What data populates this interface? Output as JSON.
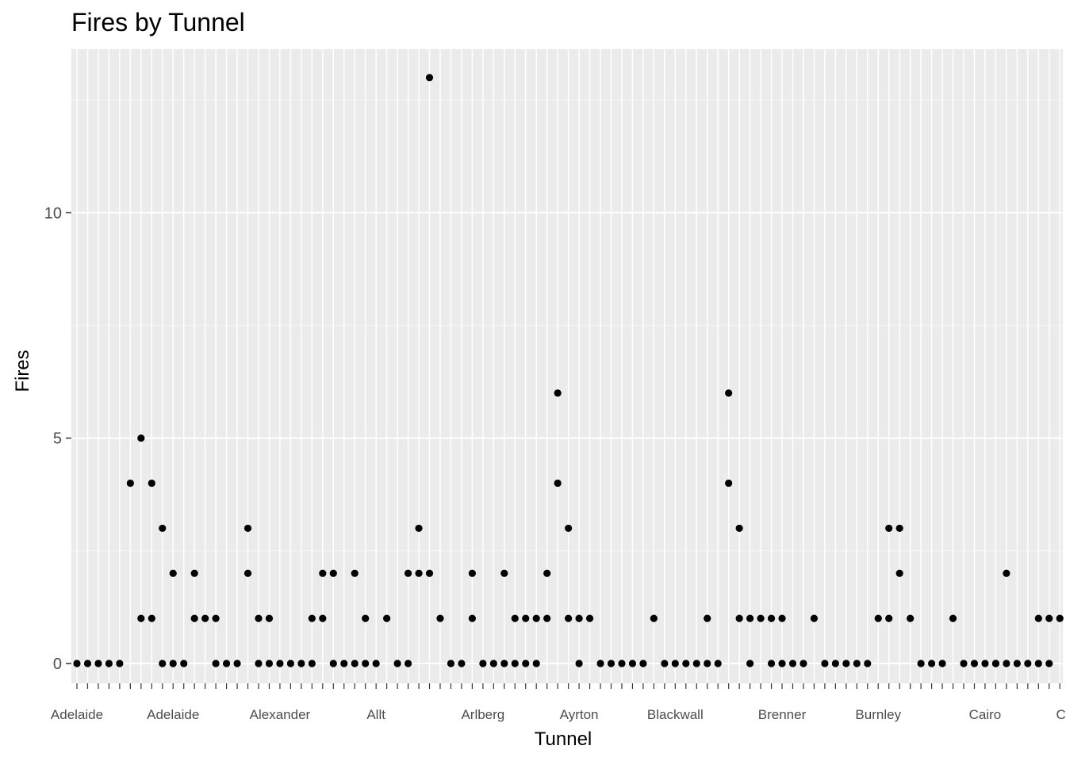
{
  "chart_data": {
    "type": "scatter",
    "title": "Fires by Tunnel",
    "xlabel": "Tunnel",
    "ylabel": "Fires",
    "ylim": [
      -0.6,
      13.6
    ],
    "yticks": [
      0,
      5,
      10
    ],
    "grid": true,
    "legend": "none",
    "point_color": "#000000",
    "panel_color": "#ebebeb",
    "category_labels": [
      "Adelaide",
      "Adelaide",
      "Alexander",
      "Allt",
      "Arlberg",
      "Ayrton",
      "Blackwall",
      "Brenner",
      "Burnley",
      "Cairo",
      "Channel"
    ],
    "points": [
      {
        "i": 0,
        "y": 0
      },
      {
        "i": 1,
        "y": 0
      },
      {
        "i": 2,
        "y": 0
      },
      {
        "i": 3,
        "y": 0
      },
      {
        "i": 4,
        "y": 0
      },
      {
        "i": 5,
        "y": 4
      },
      {
        "i": 6,
        "y": 1
      },
      {
        "i": 6,
        "y": 5
      },
      {
        "i": 7,
        "y": 1
      },
      {
        "i": 7,
        "y": 4
      },
      {
        "i": 8,
        "y": 0
      },
      {
        "i": 8,
        "y": 3
      },
      {
        "i": 9,
        "y": 0
      },
      {
        "i": 9,
        "y": 2
      },
      {
        "i": 10,
        "y": 0
      },
      {
        "i": 11,
        "y": 1
      },
      {
        "i": 11,
        "y": 2
      },
      {
        "i": 12,
        "y": 1
      },
      {
        "i": 13,
        "y": 0
      },
      {
        "i": 13,
        "y": 1
      },
      {
        "i": 14,
        "y": 0
      },
      {
        "i": 15,
        "y": 0
      },
      {
        "i": 16,
        "y": 2
      },
      {
        "i": 16,
        "y": 3
      },
      {
        "i": 17,
        "y": 0
      },
      {
        "i": 17,
        "y": 1
      },
      {
        "i": 18,
        "y": 0
      },
      {
        "i": 18,
        "y": 1
      },
      {
        "i": 19,
        "y": 0
      },
      {
        "i": 20,
        "y": 0
      },
      {
        "i": 21,
        "y": 0
      },
      {
        "i": 22,
        "y": 0
      },
      {
        "i": 22,
        "y": 1
      },
      {
        "i": 23,
        "y": 1
      },
      {
        "i": 23,
        "y": 2
      },
      {
        "i": 24,
        "y": 0
      },
      {
        "i": 24,
        "y": 2
      },
      {
        "i": 25,
        "y": 0
      },
      {
        "i": 26,
        "y": 0
      },
      {
        "i": 26,
        "y": 2
      },
      {
        "i": 27,
        "y": 0
      },
      {
        "i": 27,
        "y": 1
      },
      {
        "i": 28,
        "y": 0
      },
      {
        "i": 29,
        "y": 1
      },
      {
        "i": 30,
        "y": 0
      },
      {
        "i": 31,
        "y": 0
      },
      {
        "i": 31,
        "y": 2
      },
      {
        "i": 32,
        "y": 2
      },
      {
        "i": 32,
        "y": 3
      },
      {
        "i": 33,
        "y": 2
      },
      {
        "i": 33,
        "y": 13
      },
      {
        "i": 34,
        "y": 1
      },
      {
        "i": 35,
        "y": 0
      },
      {
        "i": 36,
        "y": 0
      },
      {
        "i": 37,
        "y": 1
      },
      {
        "i": 37,
        "y": 2
      },
      {
        "i": 38,
        "y": 0
      },
      {
        "i": 39,
        "y": 0
      },
      {
        "i": 40,
        "y": 0
      },
      {
        "i": 40,
        "y": 2
      },
      {
        "i": 41,
        "y": 0
      },
      {
        "i": 41,
        "y": 1
      },
      {
        "i": 42,
        "y": 0
      },
      {
        "i": 42,
        "y": 1
      },
      {
        "i": 43,
        "y": 0
      },
      {
        "i": 43,
        "y": 1
      },
      {
        "i": 44,
        "y": 1
      },
      {
        "i": 44,
        "y": 2
      },
      {
        "i": 45,
        "y": 4
      },
      {
        "i": 45,
        "y": 6
      },
      {
        "i": 46,
        "y": 1
      },
      {
        "i": 46,
        "y": 3
      },
      {
        "i": 47,
        "y": 0
      },
      {
        "i": 47,
        "y": 1
      },
      {
        "i": 48,
        "y": 1
      },
      {
        "i": 49,
        "y": 0
      },
      {
        "i": 50,
        "y": 0
      },
      {
        "i": 51,
        "y": 0
      },
      {
        "i": 52,
        "y": 0
      },
      {
        "i": 53,
        "y": 0
      },
      {
        "i": 54,
        "y": 1
      },
      {
        "i": 55,
        "y": 0
      },
      {
        "i": 56,
        "y": 0
      },
      {
        "i": 57,
        "y": 0
      },
      {
        "i": 58,
        "y": 0
      },
      {
        "i": 59,
        "y": 0
      },
      {
        "i": 59,
        "y": 1
      },
      {
        "i": 60,
        "y": 0
      },
      {
        "i": 61,
        "y": 4
      },
      {
        "i": 61,
        "y": 6
      },
      {
        "i": 62,
        "y": 1
      },
      {
        "i": 62,
        "y": 3
      },
      {
        "i": 63,
        "y": 0
      },
      {
        "i": 63,
        "y": 1
      },
      {
        "i": 64,
        "y": 1
      },
      {
        "i": 65,
        "y": 0
      },
      {
        "i": 65,
        "y": 1
      },
      {
        "i": 66,
        "y": 0
      },
      {
        "i": 66,
        "y": 1
      },
      {
        "i": 67,
        "y": 0
      },
      {
        "i": 68,
        "y": 0
      },
      {
        "i": 69,
        "y": 1
      },
      {
        "i": 70,
        "y": 0
      },
      {
        "i": 71,
        "y": 0
      },
      {
        "i": 72,
        "y": 0
      },
      {
        "i": 73,
        "y": 0
      },
      {
        "i": 74,
        "y": 0
      },
      {
        "i": 75,
        "y": 1
      },
      {
        "i": 76,
        "y": 1
      },
      {
        "i": 76,
        "y": 3
      },
      {
        "i": 77,
        "y": 2
      },
      {
        "i": 77,
        "y": 3
      },
      {
        "i": 78,
        "y": 1
      },
      {
        "i": 79,
        "y": 0
      },
      {
        "i": 80,
        "y": 0
      },
      {
        "i": 81,
        "y": 0
      },
      {
        "i": 82,
        "y": 1
      },
      {
        "i": 83,
        "y": 0
      },
      {
        "i": 84,
        "y": 0
      },
      {
        "i": 85,
        "y": 0
      },
      {
        "i": 86,
        "y": 0
      },
      {
        "i": 86,
        "y": 0
      },
      {
        "i": 87,
        "y": 0
      },
      {
        "i": 87,
        "y": 2
      },
      {
        "i": 88,
        "y": 0
      },
      {
        "i": 89,
        "y": 0
      },
      {
        "i": 90,
        "y": 0
      },
      {
        "i": 90,
        "y": 1
      },
      {
        "i": 91,
        "y": 0
      },
      {
        "i": 91,
        "y": 1
      },
      {
        "i": 92,
        "y": 1
      },
      {
        "i": 93,
        "y": 0
      },
      {
        "i": 94,
        "y": 0
      }
    ]
  }
}
